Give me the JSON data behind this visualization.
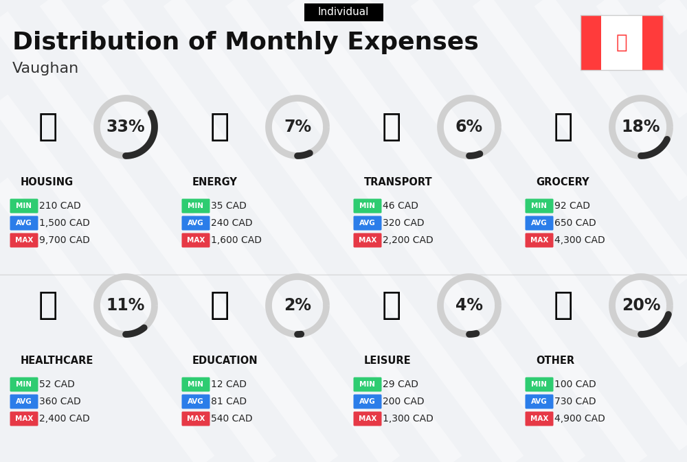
{
  "title": "Distribution of Monthly Expenses",
  "subtitle": "Vaughan",
  "tag": "Individual",
  "bg_color": "#f0f2f5",
  "categories": [
    {
      "name": "HOUSING",
      "pct": 33,
      "min_val": "210 CAD",
      "avg_val": "1,500 CAD",
      "max_val": "9,700 CAD",
      "row": 0,
      "col": 0
    },
    {
      "name": "ENERGY",
      "pct": 7,
      "min_val": "35 CAD",
      "avg_val": "240 CAD",
      "max_val": "1,600 CAD",
      "row": 0,
      "col": 1
    },
    {
      "name": "TRANSPORT",
      "pct": 6,
      "min_val": "46 CAD",
      "avg_val": "320 CAD",
      "max_val": "2,200 CAD",
      "row": 0,
      "col": 2
    },
    {
      "name": "GROCERY",
      "pct": 18,
      "min_val": "92 CAD",
      "avg_val": "650 CAD",
      "max_val": "4,300 CAD",
      "row": 0,
      "col": 3
    },
    {
      "name": "HEALTHCARE",
      "pct": 11,
      "min_val": "52 CAD",
      "avg_val": "360 CAD",
      "max_val": "2,400 CAD",
      "row": 1,
      "col": 0
    },
    {
      "name": "EDUCATION",
      "pct": 2,
      "min_val": "12 CAD",
      "avg_val": "81 CAD",
      "max_val": "540 CAD",
      "row": 1,
      "col": 1
    },
    {
      "name": "LEISURE",
      "pct": 4,
      "min_val": "29 CAD",
      "avg_val": "200 CAD",
      "max_val": "1,300 CAD",
      "row": 1,
      "col": 2
    },
    {
      "name": "OTHER",
      "pct": 20,
      "min_val": "100 CAD",
      "avg_val": "730 CAD",
      "max_val": "4,900 CAD",
      "row": 1,
      "col": 3
    }
  ],
  "min_color": "#2ecc71",
  "avg_color": "#2b7de9",
  "max_color": "#e63946",
  "arc_dark": "#2a2a2a",
  "arc_light": "#d0d0d0",
  "flag_red": "#FF3B3B",
  "title_fontsize": 26,
  "subtitle_fontsize": 16,
  "tag_fontsize": 11,
  "pct_fontsize": 17,
  "cat_fontsize": 10.5,
  "val_fontsize": 10,
  "badge_fontsize": 7.5
}
